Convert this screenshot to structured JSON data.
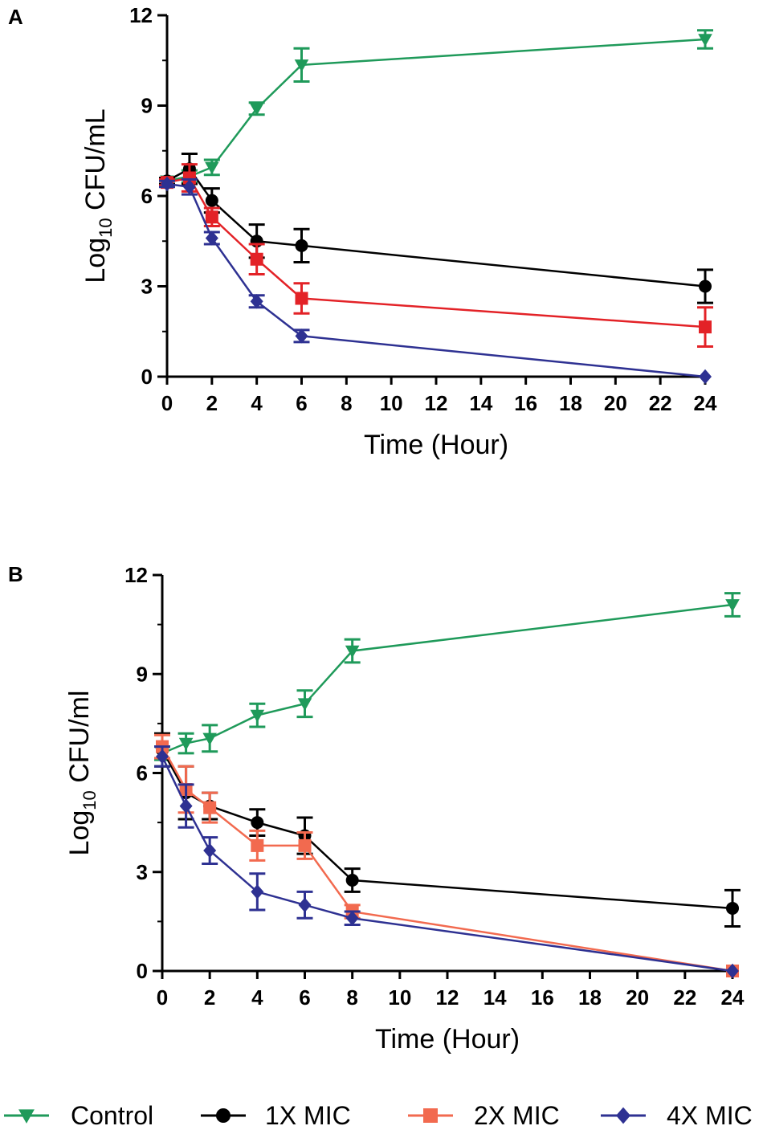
{
  "chart_data": [
    {
      "panel": "A",
      "type": "line",
      "title": "",
      "xlabel": "Time (Hour)",
      "ylabel_main": "Log",
      "ylabel_sub": "10",
      "ylabel_rest": " CFU/mL",
      "xlim": [
        0,
        24
      ],
      "ylim": [
        0,
        12
      ],
      "xticks": [
        0,
        2,
        4,
        6,
        8,
        10,
        12,
        14,
        16,
        18,
        20,
        22,
        24
      ],
      "yticks": [
        0,
        3,
        6,
        9,
        12
      ],
      "series": [
        {
          "name": "Control",
          "color": "#1f9a5a",
          "marker": "triangle-down",
          "x": [
            0,
            1,
            2,
            4,
            6,
            24
          ],
          "y": [
            6.5,
            6.65,
            6.95,
            8.9,
            10.35,
            11.2
          ],
          "err": [
            0.1,
            0.2,
            0.25,
            0.2,
            0.55,
            0.3
          ]
        },
        {
          "name": "1X MIC",
          "color": "#000000",
          "marker": "circle",
          "x": [
            0,
            1,
            2,
            4,
            6,
            24
          ],
          "y": [
            6.5,
            6.9,
            5.85,
            4.5,
            4.35,
            3.0
          ],
          "err": [
            0.1,
            0.5,
            0.4,
            0.55,
            0.55,
            0.55
          ]
        },
        {
          "name": "2X MIC",
          "color": "#e32227",
          "marker": "square",
          "x": [
            0,
            1,
            2,
            4,
            6,
            24
          ],
          "y": [
            6.45,
            6.6,
            5.3,
            3.9,
            2.6,
            1.65
          ],
          "err": [
            0.1,
            0.45,
            0.3,
            0.5,
            0.5,
            0.65
          ]
        },
        {
          "name": "4X MIC",
          "color": "#2e3192",
          "marker": "diamond",
          "x": [
            0,
            1,
            2,
            4,
            6,
            24
          ],
          "y": [
            6.4,
            6.3,
            4.6,
            2.5,
            1.35,
            0.0
          ],
          "err": [
            0.1,
            0.25,
            0.2,
            0.2,
            0.2,
            0.0
          ]
        }
      ]
    },
    {
      "panel": "B",
      "type": "line",
      "title": "",
      "xlabel": "Time (Hour)",
      "ylabel_main": "Log",
      "ylabel_sub": "10",
      "ylabel_rest": " CFU/ml",
      "xlim": [
        0,
        24
      ],
      "ylim": [
        0,
        12
      ],
      "xticks": [
        0,
        2,
        4,
        6,
        8,
        10,
        12,
        14,
        16,
        18,
        20,
        22,
        24
      ],
      "yticks": [
        0,
        3,
        6,
        9,
        12
      ],
      "series": [
        {
          "name": "Control",
          "color": "#1f9a5a",
          "marker": "triangle-down",
          "x": [
            0,
            1,
            2,
            4,
            6,
            8,
            24
          ],
          "y": [
            6.6,
            6.9,
            7.05,
            7.75,
            8.1,
            9.7,
            11.1
          ],
          "err": [
            0.2,
            0.3,
            0.4,
            0.35,
            0.4,
            0.35,
            0.35
          ]
        },
        {
          "name": "1X MIC",
          "color": "#000000",
          "marker": "circle",
          "x": [
            0,
            1,
            2,
            4,
            6,
            8,
            24
          ],
          "y": [
            6.7,
            5.4,
            5.0,
            4.5,
            4.1,
            2.75,
            1.9
          ],
          "err": [
            0.5,
            0.8,
            0.4,
            0.4,
            0.55,
            0.35,
            0.55
          ]
        },
        {
          "name": "2X MIC",
          "color": "#f26a4f",
          "marker": "square",
          "x": [
            0,
            1,
            2,
            4,
            6,
            8,
            24
          ],
          "y": [
            6.8,
            5.5,
            4.95,
            3.8,
            3.8,
            1.8,
            0.0
          ],
          "err": [
            0.35,
            0.7,
            0.45,
            0.45,
            0.4,
            0.2,
            0.0
          ]
        },
        {
          "name": "4X MIC",
          "color": "#2e3192",
          "marker": "diamond",
          "x": [
            0,
            1,
            2,
            4,
            6,
            8,
            24
          ],
          "y": [
            6.5,
            5.0,
            3.65,
            2.4,
            2.0,
            1.6,
            0.0
          ],
          "err": [
            0.3,
            0.65,
            0.4,
            0.55,
            0.4,
            0.2,
            0.0
          ]
        }
      ]
    }
  ],
  "legend": [
    {
      "label": "Control",
      "color": "#1f9a5a",
      "marker": "triangle-down"
    },
    {
      "label": "1X MIC",
      "color": "#000000",
      "marker": "circle"
    },
    {
      "label": "2X MIC",
      "color": "#f26a4f",
      "marker": "square"
    },
    {
      "label": "4X MIC",
      "color": "#2e3192",
      "marker": "diamond"
    }
  ]
}
